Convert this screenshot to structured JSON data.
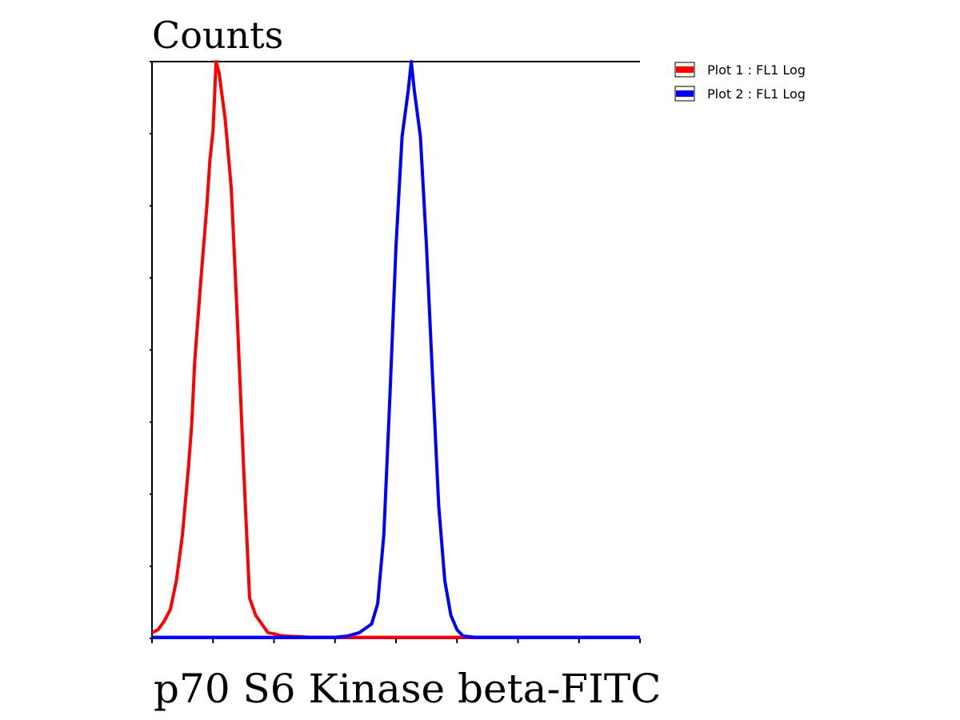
{
  "chart_data": {
    "type": "line",
    "ylabel": "Counts",
    "xlabel": "p70 S6 Kinase beta-FITC",
    "grid": false,
    "legend_placement": "top-right",
    "xlim": [
      0,
      8
    ],
    "ylim": [
      0,
      1
    ],
    "series": [
      {
        "name": "Plot 1 : FL1 Log",
        "color": "#ff0000",
        "x": [
          0.0,
          0.1,
          0.2,
          0.3,
          0.4,
          0.5,
          0.6,
          0.65,
          0.7,
          0.8,
          0.9,
          0.95,
          1.0,
          1.05,
          1.1,
          1.2,
          1.3,
          1.4,
          1.5,
          1.6,
          1.7,
          1.8,
          1.9,
          2.0,
          2.1,
          2.2,
          2.4,
          2.6,
          2.8,
          3.0,
          4.0,
          5.0,
          6.0,
          8.0
        ],
        "y": [
          0.01,
          0.015,
          0.03,
          0.05,
          0.1,
          0.18,
          0.3,
          0.37,
          0.48,
          0.62,
          0.75,
          0.83,
          0.88,
          1.0,
          0.98,
          0.9,
          0.78,
          0.55,
          0.3,
          0.07,
          0.04,
          0.025,
          0.01,
          0.008,
          0.005,
          0.004,
          0.003,
          0.002,
          0.002,
          0.002,
          0.002,
          0.002,
          0.002,
          0.002
        ]
      },
      {
        "name": "Plot 2 : FL1 Log",
        "color": "#0000ff",
        "x": [
          0.0,
          1.0,
          2.0,
          2.5,
          3.0,
          3.2,
          3.4,
          3.6,
          3.7,
          3.8,
          3.9,
          4.0,
          4.1,
          4.2,
          4.25,
          4.3,
          4.4,
          4.5,
          4.6,
          4.7,
          4.8,
          4.9,
          5.0,
          5.1,
          5.2,
          5.3,
          5.5,
          6.0,
          8.0
        ],
        "y": [
          0.002,
          0.002,
          0.002,
          0.002,
          0.002,
          0.004,
          0.01,
          0.025,
          0.06,
          0.18,
          0.42,
          0.68,
          0.87,
          0.95,
          1.0,
          0.95,
          0.87,
          0.68,
          0.45,
          0.23,
          0.1,
          0.04,
          0.015,
          0.004,
          0.003,
          0.002,
          0.002,
          0.002,
          0.002
        ]
      }
    ]
  }
}
